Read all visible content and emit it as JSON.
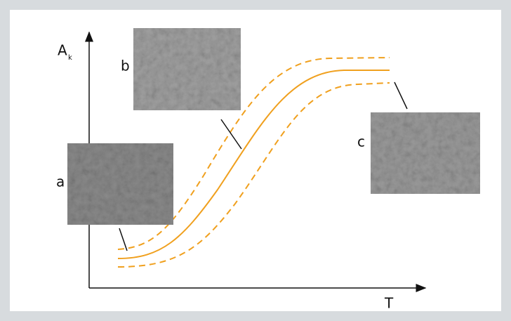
{
  "axes": {
    "y_label": "A",
    "y_subscript": "k",
    "x_label": "T"
  },
  "photos": [
    {
      "label": "a"
    },
    {
      "label": "b"
    },
    {
      "label": "c"
    }
  ]
}
